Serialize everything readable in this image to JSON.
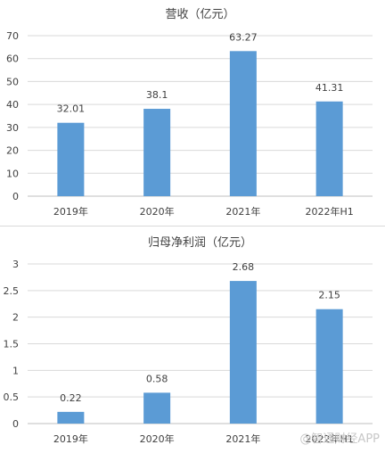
{
  "chart_data": [
    {
      "type": "bar",
      "title": "营收（亿元）",
      "categories": [
        "2019年",
        "2020年",
        "2021年",
        "2022年H1"
      ],
      "values": [
        32.01,
        38.1,
        63.27,
        41.31
      ],
      "value_labels": [
        "32.01",
        "38.1",
        "63.27",
        "41.31"
      ],
      "ylim": [
        0,
        70
      ],
      "yticks": [
        0,
        10,
        20,
        30,
        40,
        50,
        60,
        70
      ],
      "ytick_labels": [
        "0",
        "10",
        "20",
        "30",
        "40",
        "50",
        "60",
        "70"
      ],
      "grid": true,
      "bar_color": "#5b9bd5"
    },
    {
      "type": "bar",
      "title": "归母净利润（亿元）",
      "categories": [
        "2019年",
        "2020年",
        "2021年",
        "2022年H1"
      ],
      "values": [
        0.22,
        0.58,
        2.68,
        2.15
      ],
      "value_labels": [
        "0.22",
        "0.58",
        "2.68",
        "2.15"
      ],
      "ylim": [
        0,
        3
      ],
      "yticks": [
        0,
        0.5,
        1,
        1.5,
        2,
        2.5,
        3
      ],
      "ytick_labels": [
        "0",
        "0.5",
        "1",
        "1.5",
        "2",
        "2.5",
        "3"
      ],
      "grid": true,
      "bar_color": "#5b9bd5"
    }
  ],
  "watermark": "@智通财经APP"
}
